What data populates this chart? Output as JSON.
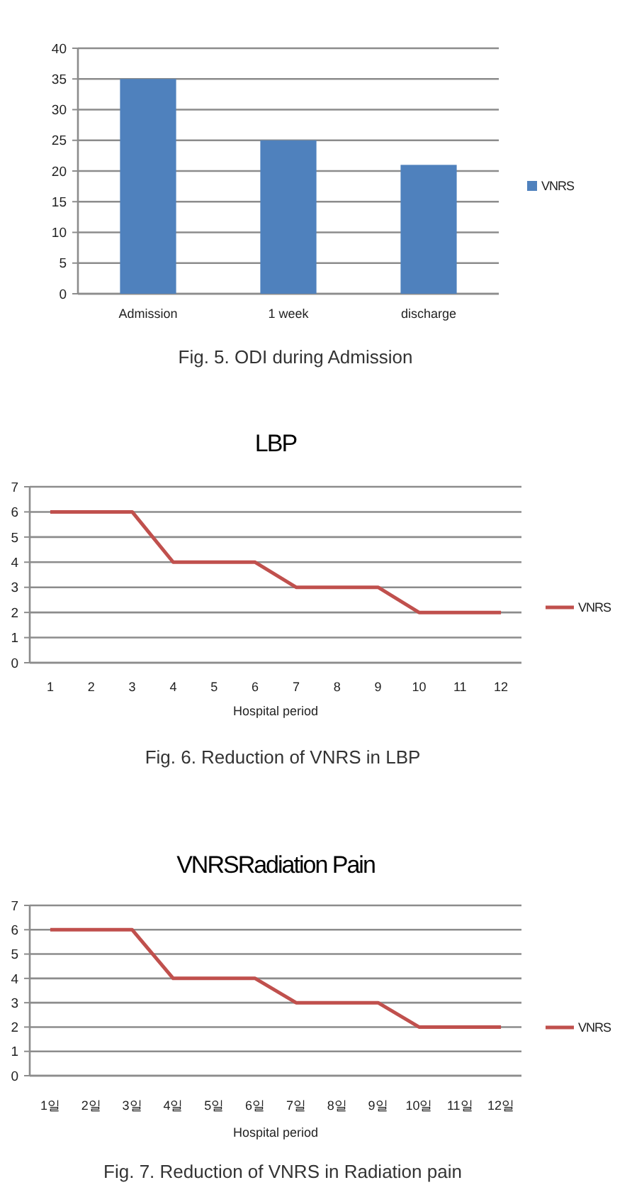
{
  "chart_data": [
    {
      "type": "bar",
      "categories": [
        "Admission",
        "1 week",
        "discharge"
      ],
      "series": [
        {
          "name": "VNRS",
          "color": "#4f81bd",
          "values": [
            35,
            25,
            21
          ]
        }
      ],
      "ylim": [
        0,
        40
      ],
      "yticks": [
        0,
        5,
        10,
        15,
        20,
        25,
        30,
        35,
        40
      ],
      "grid": "y",
      "legend": "right",
      "annotations": [
        "Fig. 5. ODI during Admission"
      ]
    },
    {
      "type": "line",
      "title": "LBP",
      "xlabel": "Hospital period",
      "categories": [
        "1",
        "2",
        "3",
        "4",
        "5",
        "6",
        "7",
        "8",
        "9",
        "10",
        "11",
        "12"
      ],
      "series": [
        {
          "name": "VNRS",
          "color": "#c0504d",
          "values": [
            6,
            6,
            6,
            4,
            4,
            4,
            3,
            3,
            3,
            2,
            2,
            2
          ]
        }
      ],
      "ylim": [
        0,
        7
      ],
      "yticks": [
        0,
        1,
        2,
        3,
        4,
        5,
        6,
        7
      ],
      "grid": "y",
      "legend": "right",
      "marker": "none",
      "line_style": "solid",
      "annotations": [
        "Fig. 6. Reduction of VNRS in LBP"
      ]
    },
    {
      "type": "line",
      "title": "VNRSRadiation Pain",
      "xlabel": "Hospital period",
      "categories": [
        "1일",
        "2일",
        "3일",
        "4일",
        "5일",
        "6일",
        "7일",
        "8일",
        "9일",
        "10일",
        "11일",
        "12일"
      ],
      "series": [
        {
          "name": "VNRS",
          "color": "#c0504d",
          "values": [
            6,
            6,
            6,
            4,
            4,
            4,
            3,
            3,
            3,
            2,
            2,
            2
          ]
        }
      ],
      "ylim": [
        0,
        7
      ],
      "yticks": [
        0,
        1,
        2,
        3,
        4,
        5,
        6,
        7
      ],
      "grid": "y",
      "legend": "right",
      "marker": "none",
      "line_style": "solid",
      "annotations": [
        "Fig. 7. Reduction of VNRS in Radiation pain"
      ]
    }
  ]
}
